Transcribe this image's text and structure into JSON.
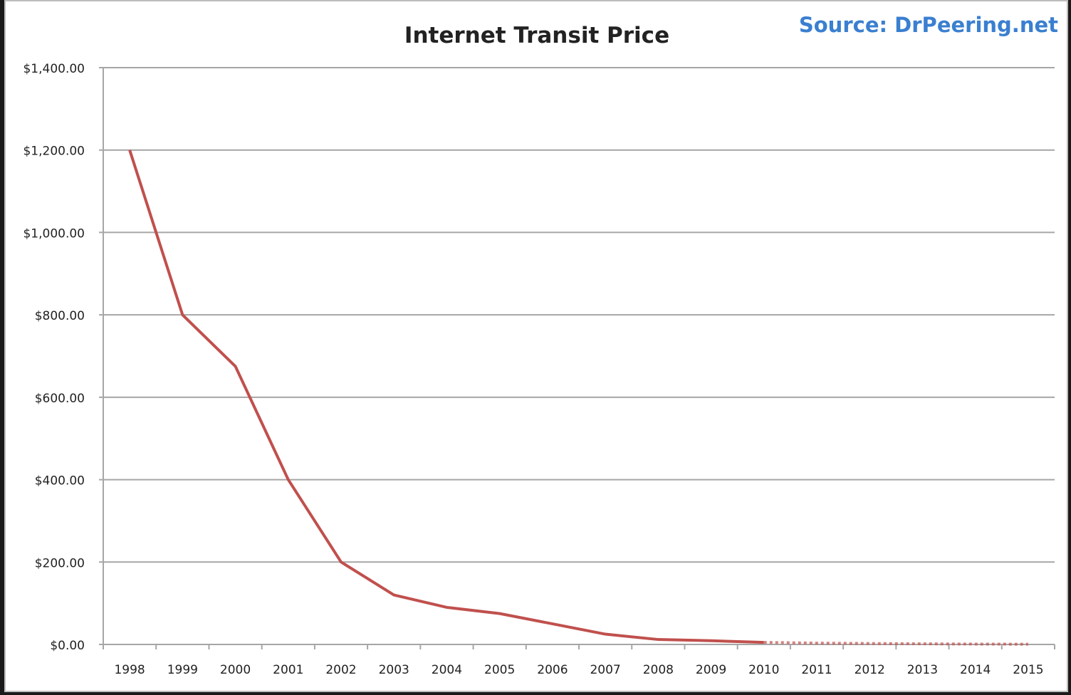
{
  "chart_data": {
    "type": "line",
    "title": "Internet Transit Price",
    "source_note": "Source: DrPeering.net",
    "xlabel": "",
    "ylabel": "",
    "categories": [
      "1998",
      "1999",
      "2000",
      "2001",
      "2002",
      "2003",
      "2004",
      "2005",
      "2006",
      "2007",
      "2008",
      "2009",
      "2010",
      "2011",
      "2012",
      "2013",
      "2014",
      "2015"
    ],
    "series": [
      {
        "values": [
          1200,
          800,
          675,
          400,
          200,
          120,
          90,
          75,
          50,
          25,
          12,
          9,
          5,
          3.25,
          2.34,
          1.57,
          0.94,
          0.63
        ],
        "solid_through": "2010",
        "dashed_after": "2010"
      }
    ],
    "yticks": [
      "$0.00",
      "$200.00",
      "$400.00",
      "$600.00",
      "$800.00",
      "$1,000.00",
      "$1,200.00",
      "$1,400.00"
    ],
    "ylim": [
      0,
      1400
    ],
    "grid": true,
    "legend": "none",
    "colors": {
      "line": "#c0504d",
      "grid": "#a6a6a6",
      "source": "#3a7fd0",
      "text": "#222222"
    }
  }
}
